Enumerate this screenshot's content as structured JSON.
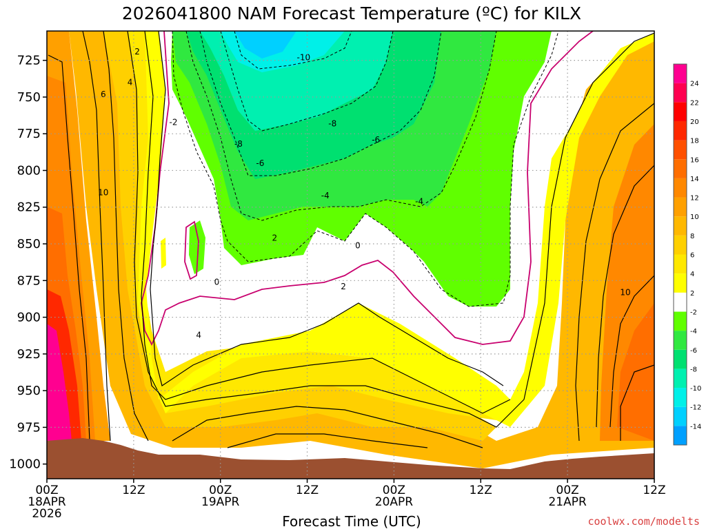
{
  "chart_data": {
    "type": "heatmap",
    "title": "2026041800 NAM Forecast Temperature (ºC) for KILX",
    "xlabel": "Forecast Time (UTC)",
    "ylabel": "",
    "x_ticks": [
      {
        "hour": 0,
        "lines": [
          "00Z",
          "18APR",
          "2026"
        ]
      },
      {
        "hour": 12,
        "lines": [
          "12Z"
        ]
      },
      {
        "hour": 24,
        "lines": [
          "00Z",
          "19APR"
        ]
      },
      {
        "hour": 36,
        "lines": [
          "12Z"
        ]
      },
      {
        "hour": 48,
        "lines": [
          "00Z",
          "20APR"
        ]
      },
      {
        "hour": 60,
        "lines": [
          "12Z"
        ]
      },
      {
        "hour": 72,
        "lines": [
          "00Z",
          "21APR"
        ]
      },
      {
        "hour": 84,
        "lines": [
          "12Z"
        ]
      }
    ],
    "xlim": [
      0,
      84
    ],
    "y_ticks": [
      725,
      750,
      775,
      800,
      825,
      850,
      875,
      900,
      925,
      950,
      975,
      1000
    ],
    "ylim": [
      1010,
      705
    ],
    "grid": true,
    "colorbar": {
      "levels": [
        -16,
        -14,
        -12,
        -10,
        -8,
        -6,
        -4,
        -2,
        2,
        4,
        6,
        8,
        10,
        12,
        14,
        16,
        18,
        20,
        22,
        24,
        26
      ],
      "labels": [
        "-14",
        "-12",
        "-10",
        "-8",
        "-6",
        "-4",
        "-2",
        "2",
        "4",
        "6",
        "8",
        "10",
        "12",
        "14",
        "16",
        "18",
        "20",
        "22",
        "24"
      ],
      "colors": [
        "#00a0ff",
        "#00d0ff",
        "#00f0e8",
        "#00f0b0",
        "#00e070",
        "#30e840",
        "#60ff00",
        "#ffffff",
        "#ffff00",
        "#ffe800",
        "#ffd000",
        "#ffb800",
        "#ffa000",
        "#ff8800",
        "#ff6e00",
        "#ff5000",
        "#ff2800",
        "#ff0000",
        "#ff0050",
        "#ff0090"
      ]
    },
    "ground_color": "#9b5030",
    "freezing_line_color": "#c8006e",
    "contour_labels": [
      {
        "text": "2",
        "hour": 12.5,
        "p": 720
      },
      {
        "text": "4",
        "hour": 11.5,
        "p": 741
      },
      {
        "text": "6",
        "hour": 7.8,
        "p": 749
      },
      {
        "text": "10",
        "hour": 7.8,
        "p": 816
      },
      {
        "text": "-2",
        "hour": 17.5,
        "p": 768
      },
      {
        "text": "-10",
        "hour": 35.5,
        "p": 724
      },
      {
        "text": "-8",
        "hour": 26.5,
        "p": 783
      },
      {
        "text": "-8",
        "hour": 39.5,
        "p": 769
      },
      {
        "text": "-6",
        "hour": 29.5,
        "p": 796
      },
      {
        "text": "-6",
        "hour": 45.5,
        "p": 780
      },
      {
        "text": "-4",
        "hour": 38.5,
        "p": 818
      },
      {
        "text": "-4",
        "hour": 51.5,
        "p": 822
      },
      {
        "text": "2",
        "hour": 31.5,
        "p": 847
      },
      {
        "text": "0",
        "hour": 23.5,
        "p": 877
      },
      {
        "text": "0",
        "hour": 43,
        "p": 852
      },
      {
        "text": "2",
        "hour": 41,
        "p": 880
      },
      {
        "text": "4",
        "hour": 21,
        "p": 913
      },
      {
        "text": "10",
        "hour": 80,
        "p": 884
      }
    ],
    "watermark": "coolwx.com/modelts"
  }
}
